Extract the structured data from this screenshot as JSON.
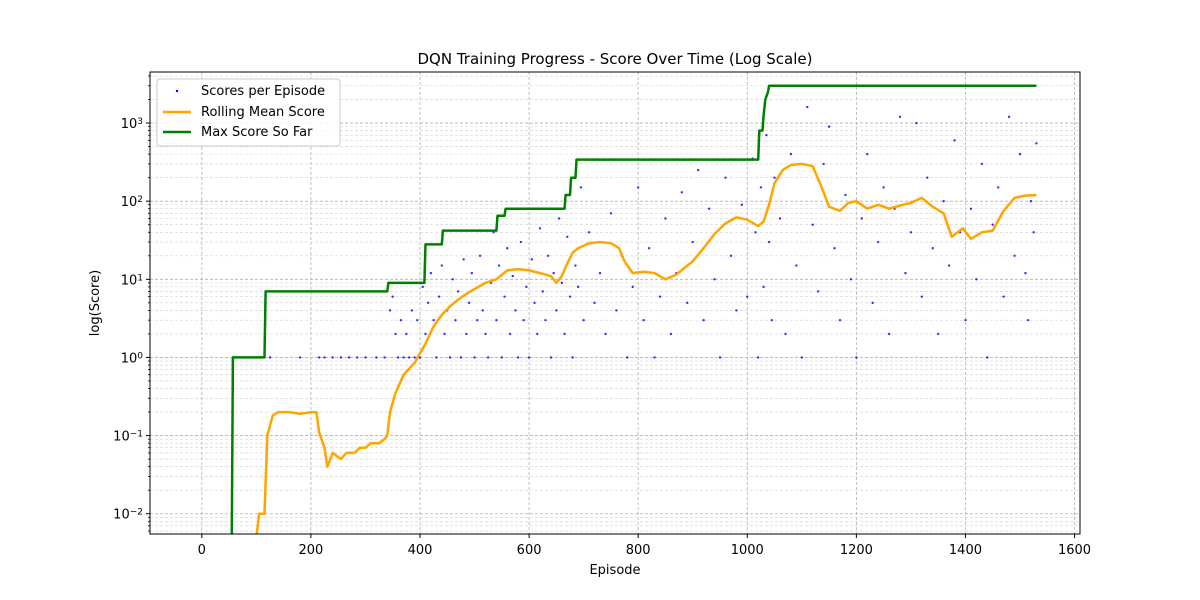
{
  "chart_data": {
    "type": "line",
    "title": "DQN Training Progress - Score Over Time (Log Scale)",
    "xlabel": "Episode",
    "ylabel": "log(Score)",
    "yscale": "log",
    "xlim": [
      -95,
      1610
    ],
    "ylim": [
      0.0055,
      4500
    ],
    "x_ticks": [
      "0",
      "200",
      "400",
      "600",
      "800",
      "1000",
      "1200",
      "1400",
      "1600"
    ],
    "y_ticks": [
      {
        "base": "10",
        "exp": "−2"
      },
      {
        "base": "10",
        "exp": "−1"
      },
      {
        "base": "10",
        "exp": "0"
      },
      {
        "base": "10",
        "exp": "1"
      },
      {
        "base": "10",
        "exp": "2"
      },
      {
        "base": "10",
        "exp": "3"
      }
    ],
    "grid": true,
    "legend_position": "upper-left",
    "colors": {
      "scores": "#0000ff",
      "rolling": "#ffa500",
      "max": "#008000"
    },
    "series": [
      {
        "name": "Scores per Episode",
        "type": "scatter",
        "points": [
          [
            110,
            1
          ],
          [
            125,
            1
          ],
          [
            180,
            1
          ],
          [
            215,
            1
          ],
          [
            225,
            1
          ],
          [
            240,
            1
          ],
          [
            255,
            1
          ],
          [
            270,
            1
          ],
          [
            285,
            1
          ],
          [
            300,
            1
          ],
          [
            320,
            1
          ],
          [
            335,
            1
          ],
          [
            345,
            4
          ],
          [
            350,
            6
          ],
          [
            355,
            2
          ],
          [
            360,
            1
          ],
          [
            365,
            3
          ],
          [
            370,
            1
          ],
          [
            375,
            2
          ],
          [
            380,
            1
          ],
          [
            385,
            4
          ],
          [
            390,
            1
          ],
          [
            395,
            3
          ],
          [
            400,
            1
          ],
          [
            405,
            8
          ],
          [
            410,
            2
          ],
          [
            415,
            5
          ],
          [
            420,
            12
          ],
          [
            425,
            3
          ],
          [
            430,
            1
          ],
          [
            435,
            6
          ],
          [
            440,
            15
          ],
          [
            445,
            2
          ],
          [
            450,
            4
          ],
          [
            455,
            1
          ],
          [
            460,
            10
          ],
          [
            465,
            3
          ],
          [
            470,
            7
          ],
          [
            475,
            1
          ],
          [
            480,
            18
          ],
          [
            485,
            2
          ],
          [
            490,
            5
          ],
          [
            495,
            12
          ],
          [
            500,
            1
          ],
          [
            505,
            3
          ],
          [
            510,
            20
          ],
          [
            515,
            4
          ],
          [
            520,
            2
          ],
          [
            525,
            1
          ],
          [
            530,
            9
          ],
          [
            535,
            40
          ],
          [
            540,
            3
          ],
          [
            545,
            15
          ],
          [
            550,
            1
          ],
          [
            555,
            6
          ],
          [
            560,
            25
          ],
          [
            565,
            2
          ],
          [
            570,
            11
          ],
          [
            575,
            4
          ],
          [
            580,
            1
          ],
          [
            585,
            30
          ],
          [
            590,
            3
          ],
          [
            595,
            8
          ],
          [
            600,
            1
          ],
          [
            605,
            18
          ],
          [
            610,
            5
          ],
          [
            615,
            2
          ],
          [
            620,
            45
          ],
          [
            625,
            7
          ],
          [
            630,
            3
          ],
          [
            635,
            20
          ],
          [
            640,
            1
          ],
          [
            645,
            12
          ],
          [
            650,
            4
          ],
          [
            655,
            60
          ],
          [
            660,
            9
          ],
          [
            665,
            2
          ],
          [
            670,
            35
          ],
          [
            675,
            6
          ],
          [
            680,
            1
          ],
          [
            685,
            15
          ],
          [
            690,
            8
          ],
          [
            695,
            150
          ],
          [
            700,
            3
          ],
          [
            710,
            40
          ],
          [
            720,
            5
          ],
          [
            730,
            12
          ],
          [
            740,
            2
          ],
          [
            750,
            70
          ],
          [
            760,
            4
          ],
          [
            770,
            20
          ],
          [
            780,
            1
          ],
          [
            790,
            8
          ],
          [
            800,
            150
          ],
          [
            810,
            3
          ],
          [
            820,
            25
          ],
          [
            830,
            1
          ],
          [
            840,
            6
          ],
          [
            850,
            60
          ],
          [
            860,
            2
          ],
          [
            870,
            12
          ],
          [
            880,
            130
          ],
          [
            890,
            5
          ],
          [
            900,
            30
          ],
          [
            910,
            250
          ],
          [
            920,
            3
          ],
          [
            930,
            80
          ],
          [
            940,
            10
          ],
          [
            950,
            1
          ],
          [
            960,
            200
          ],
          [
            970,
            20
          ],
          [
            980,
            4
          ],
          [
            990,
            90
          ],
          [
            1000,
            6
          ],
          [
            1010,
            350
          ],
          [
            1015,
            40
          ],
          [
            1020,
            1
          ],
          [
            1025,
            150
          ],
          [
            1030,
            8
          ],
          [
            1035,
            700
          ],
          [
            1040,
            30
          ],
          [
            1045,
            3
          ],
          [
            1050,
            200
          ],
          [
            1060,
            60
          ],
          [
            1070,
            2
          ],
          [
            1080,
            400
          ],
          [
            1090,
            15
          ],
          [
            1100,
            1
          ],
          [
            1110,
            1600
          ],
          [
            1120,
            50
          ],
          [
            1130,
            7
          ],
          [
            1140,
            300
          ],
          [
            1150,
            900
          ],
          [
            1160,
            25
          ],
          [
            1170,
            3
          ],
          [
            1180,
            120
          ],
          [
            1190,
            10
          ],
          [
            1200,
            1
          ],
          [
            1210,
            60
          ],
          [
            1220,
            400
          ],
          [
            1230,
            5
          ],
          [
            1240,
            30
          ],
          [
            1250,
            150
          ],
          [
            1260,
            2
          ],
          [
            1270,
            80
          ],
          [
            1280,
            1200
          ],
          [
            1290,
            12
          ],
          [
            1300,
            40
          ],
          [
            1310,
            1000
          ],
          [
            1320,
            6
          ],
          [
            1330,
            200
          ],
          [
            1340,
            25
          ],
          [
            1350,
            2
          ],
          [
            1360,
            100
          ],
          [
            1370,
            15
          ],
          [
            1380,
            600
          ],
          [
            1390,
            40
          ],
          [
            1400,
            3
          ],
          [
            1410,
            80
          ],
          [
            1420,
            10
          ],
          [
            1430,
            300
          ],
          [
            1440,
            1
          ],
          [
            1450,
            50
          ],
          [
            1460,
            150
          ],
          [
            1470,
            6
          ],
          [
            1480,
            1200
          ],
          [
            1490,
            20
          ],
          [
            1500,
            400
          ],
          [
            1510,
            12
          ],
          [
            1515,
            3
          ],
          [
            1520,
            100
          ],
          [
            1525,
            40
          ],
          [
            1530,
            550
          ]
        ]
      },
      {
        "name": "Rolling Mean Score",
        "type": "line",
        "points": [
          [
            100,
            0.005
          ],
          [
            105,
            0.01
          ],
          [
            115,
            0.01
          ],
          [
            120,
            0.1
          ],
          [
            130,
            0.18
          ],
          [
            140,
            0.2
          ],
          [
            160,
            0.2
          ],
          [
            180,
            0.19
          ],
          [
            200,
            0.2
          ],
          [
            210,
            0.2
          ],
          [
            215,
            0.11
          ],
          [
            225,
            0.07
          ],
          [
            230,
            0.04
          ],
          [
            240,
            0.06
          ],
          [
            255,
            0.05
          ],
          [
            265,
            0.06
          ],
          [
            280,
            0.06
          ],
          [
            290,
            0.07
          ],
          [
            300,
            0.07
          ],
          [
            310,
            0.08
          ],
          [
            325,
            0.08
          ],
          [
            335,
            0.09
          ],
          [
            340,
            0.1
          ],
          [
            345,
            0.2
          ],
          [
            355,
            0.35
          ],
          [
            370,
            0.6
          ],
          [
            390,
            0.85
          ],
          [
            410,
            1.5
          ],
          [
            425,
            2.5
          ],
          [
            440,
            3.5
          ],
          [
            455,
            4.5
          ],
          [
            470,
            5.5
          ],
          [
            485,
            6.5
          ],
          [
            500,
            7.5
          ],
          [
            520,
            9
          ],
          [
            540,
            10
          ],
          [
            560,
            13
          ],
          [
            580,
            13.5
          ],
          [
            600,
            13
          ],
          [
            620,
            12
          ],
          [
            640,
            11
          ],
          [
            650,
            9
          ],
          [
            660,
            11
          ],
          [
            670,
            16
          ],
          [
            680,
            22
          ],
          [
            690,
            25
          ],
          [
            710,
            29
          ],
          [
            730,
            30
          ],
          [
            750,
            29
          ],
          [
            765,
            25
          ],
          [
            775,
            17
          ],
          [
            790,
            12
          ],
          [
            810,
            12.5
          ],
          [
            830,
            12
          ],
          [
            850,
            10
          ],
          [
            870,
            11.5
          ],
          [
            885,
            14
          ],
          [
            900,
            17
          ],
          [
            920,
            25
          ],
          [
            940,
            38
          ],
          [
            960,
            52
          ],
          [
            980,
            62
          ],
          [
            1000,
            58
          ],
          [
            1020,
            48
          ],
          [
            1030,
            55
          ],
          [
            1040,
            90
          ],
          [
            1050,
            170
          ],
          [
            1065,
            250
          ],
          [
            1080,
            290
          ],
          [
            1100,
            300
          ],
          [
            1120,
            280
          ],
          [
            1135,
            160
          ],
          [
            1150,
            85
          ],
          [
            1170,
            75
          ],
          [
            1185,
            95
          ],
          [
            1200,
            100
          ],
          [
            1220,
            80
          ],
          [
            1240,
            90
          ],
          [
            1260,
            80
          ],
          [
            1280,
            88
          ],
          [
            1300,
            95
          ],
          [
            1320,
            110
          ],
          [
            1340,
            85
          ],
          [
            1360,
            70
          ],
          [
            1375,
            35
          ],
          [
            1395,
            45
          ],
          [
            1410,
            33
          ],
          [
            1430,
            40
          ],
          [
            1450,
            42
          ],
          [
            1470,
            75
          ],
          [
            1490,
            110
          ],
          [
            1510,
            118
          ],
          [
            1530,
            120
          ]
        ]
      },
      {
        "name": "Max Score So Far",
        "type": "line",
        "points": [
          [
            55,
            0.0055
          ],
          [
            57,
            1
          ],
          [
            115,
            1
          ],
          [
            117,
            7
          ],
          [
            340,
            7
          ],
          [
            342,
            9
          ],
          [
            408,
            9
          ],
          [
            410,
            28
          ],
          [
            440,
            28
          ],
          [
            442,
            42
          ],
          [
            540,
            42
          ],
          [
            542,
            65
          ],
          [
            555,
            65
          ],
          [
            557,
            80
          ],
          [
            665,
            80
          ],
          [
            667,
            120
          ],
          [
            675,
            120
          ],
          [
            677,
            200
          ],
          [
            685,
            200
          ],
          [
            687,
            340
          ],
          [
            1020,
            340
          ],
          [
            1022,
            800
          ],
          [
            1028,
            800
          ],
          [
            1030,
            1250
          ],
          [
            1033,
            2000
          ],
          [
            1038,
            2500
          ],
          [
            1040,
            3000
          ],
          [
            1530,
            3000
          ]
        ]
      }
    ]
  }
}
